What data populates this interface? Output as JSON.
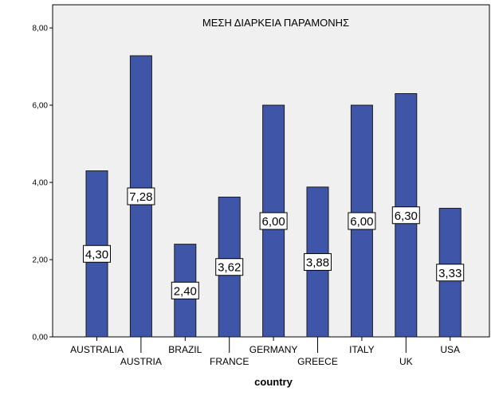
{
  "chart_data": {
    "type": "bar",
    "title": "ΜΕΣΗ ΔΙΑΡΚΕΙΑ ΠΑΡΑΜΟΝΗΣ",
    "xlabel": "country",
    "ylabel": "",
    "categories": [
      "AUSTRALIA",
      "AUSTRIA",
      "BRAZIL",
      "FRANCE",
      "GERMANY",
      "GREECE",
      "ITALY",
      "UK",
      "USA"
    ],
    "values": [
      4.3,
      7.28,
      2.4,
      3.62,
      6.0,
      3.88,
      6.0,
      6.3,
      3.33
    ],
    "data_labels": [
      "4,30",
      "7,28",
      "2,40",
      "3,62",
      "6,00",
      "3,88",
      "6,00",
      "6,30",
      "3,33"
    ],
    "ylim": [
      0,
      8.6
    ],
    "yticks": [
      0,
      2,
      4,
      6,
      8
    ],
    "ytick_labels": [
      "0,00",
      "2,00",
      "4,00",
      "6,00",
      "8,00"
    ],
    "grid": false,
    "colors": {
      "bar_fill": "#3f56a8",
      "bar_stroke": "#1a1a1a",
      "plot_bg": "#f0f0f0",
      "axis": "#000000"
    }
  }
}
